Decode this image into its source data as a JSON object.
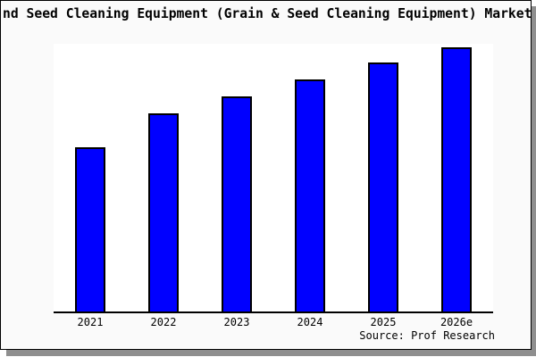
{
  "title": "nd Seed Cleaning Equipment (Grain & Seed Cleaning Equipment) Market",
  "source": "Source: Prof Research",
  "colors": {
    "bar_fill": "#0000ff",
    "bar_edge": "#000000",
    "frame_background": "#fafafa",
    "plot_background": "#ffffff",
    "axis": "#000000",
    "shadow": "#8f8f8f",
    "text": "#000000"
  },
  "chart_data": {
    "type": "bar",
    "categories": [
      "2021",
      "2022",
      "2023",
      "2024",
      "2025",
      "2026e"
    ],
    "values": [
      100,
      120,
      130.5,
      140.5,
      150.5,
      160
    ],
    "title": "nd Seed Cleaning Equipment (Grain & Seed Cleaning Equipment) Market",
    "xlabel": "",
    "ylabel": "",
    "ylim": [
      0,
      162
    ],
    "grid": false,
    "legend": false,
    "y_axis_visible": false,
    "annotation": "Source: Prof Research"
  }
}
